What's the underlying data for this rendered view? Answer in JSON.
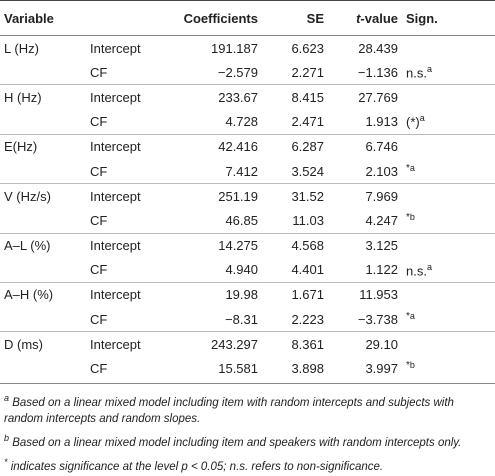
{
  "table": {
    "header": [
      "Variable",
      "",
      "Coefficients",
      "SE",
      [
        "t",
        "-value"
      ],
      "Sign."
    ],
    "rows": [
      [
        "L (Hz)",
        "Intercept",
        "191.187",
        "6.623",
        "28.439",
        [
          "",
          ""
        ]
      ],
      [
        "",
        "CF",
        "−2.579",
        "2.271",
        "−1.136",
        [
          "n.s.",
          "a"
        ]
      ],
      [
        "H (Hz)",
        "Intercept",
        "233.67",
        "8.415",
        "27.769",
        [
          "",
          ""
        ]
      ],
      [
        "",
        "CF",
        "4.728",
        "2.471",
        "1.913",
        [
          "(*)",
          "a"
        ]
      ],
      [
        "E(Hz)",
        "Intercept",
        "42.416",
        "6.287",
        "6.746",
        [
          "",
          ""
        ]
      ],
      [
        "",
        "CF",
        "7.412",
        "3.524",
        "2.103",
        [
          "*",
          "a"
        ]
      ],
      [
        "V (Hz/s)",
        "Intercept",
        "251.19",
        "31.52",
        "7.969",
        [
          "",
          ""
        ]
      ],
      [
        "",
        "CF",
        "46.85",
        "11.03",
        "4.247",
        [
          "*",
          "b"
        ]
      ],
      [
        "A–L (%)",
        "Intercept",
        "14.275",
        "4.568",
        "3.125",
        [
          "",
          ""
        ]
      ],
      [
        "",
        "CF",
        "4.940",
        "4.401",
        "1.122",
        [
          "n.s.",
          "a"
        ]
      ],
      [
        "A–H (%)",
        "Intercept",
        "19.98",
        "1.671",
        "11.953",
        [
          "",
          ""
        ]
      ],
      [
        "",
        "CF",
        "−8.31",
        "2.223",
        "−3.738",
        [
          "*",
          "a"
        ]
      ],
      [
        "D (ms)",
        "Intercept",
        "243.297",
        "8.361",
        "29.10",
        [
          "",
          ""
        ]
      ],
      [
        "",
        "CF",
        "15.581",
        "3.898",
        "3.997",
        [
          "*",
          "b"
        ]
      ]
    ]
  },
  "footnotes": [
    {
      "mark": "a",
      "text": "Based on a linear mixed model including item with random intercepts and subjects with random intercepts and random slopes."
    },
    {
      "mark": "b",
      "text": "Based on a linear mixed model including item and speakers with random intercepts only."
    },
    {
      "mark": "*",
      "text": "indicates significance at the level p < 0.05; n.s. refers to non-significance."
    }
  ]
}
